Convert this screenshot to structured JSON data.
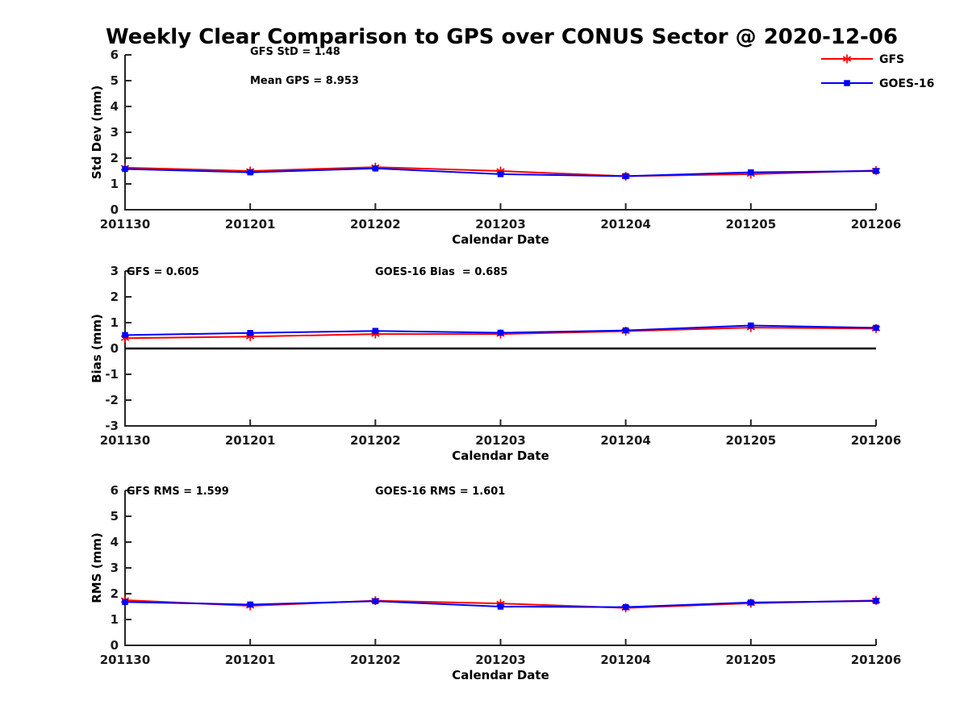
{
  "title": "Weekly Clear Comparison to GPS over CONUS Sector @ 2020-12-06",
  "legend": {
    "position": "top-right",
    "items": [
      {
        "label": "GFS",
        "color": "#ff0000",
        "marker": "asterisk"
      },
      {
        "label": "GOES-16",
        "color": "#0000ff",
        "marker": "square"
      }
    ]
  },
  "axis_color": "#262626",
  "zero_line_color": "#000000",
  "chart_data": [
    {
      "type": "line",
      "name": "std-dev-panel",
      "ylabel": "Std Dev (mm)",
      "xlabel": "Calendar Date",
      "ylim": [
        0,
        6
      ],
      "yticks": [
        0,
        1,
        2,
        3,
        4,
        5,
        6
      ],
      "grid": false,
      "zero_line": false,
      "categories": [
        "201130",
        "201201",
        "201202",
        "201203",
        "201204",
        "201205",
        "201206"
      ],
      "annotations": [
        {
          "text": "GFS StD = 1.48"
        },
        {
          "text": "Mean GPS = 8.953"
        }
      ],
      "series": [
        {
          "name": "GFS",
          "color": "#ff0000",
          "marker": "asterisk",
          "values": [
            1.63,
            1.5,
            1.65,
            1.5,
            1.3,
            1.38,
            1.52
          ]
        },
        {
          "name": "GOES-16",
          "color": "#0000ff",
          "marker": "square",
          "values": [
            1.58,
            1.45,
            1.6,
            1.38,
            1.3,
            1.45,
            1.5
          ]
        }
      ]
    },
    {
      "type": "line",
      "name": "bias-panel",
      "ylabel": "Bias (mm)",
      "xlabel": "Calendar Date",
      "ylim": [
        -3,
        3
      ],
      "yticks": [
        -3,
        -2,
        -1,
        0,
        1,
        2,
        3
      ],
      "grid": false,
      "zero_line": true,
      "categories": [
        "201130",
        "201201",
        "201202",
        "201203",
        "201204",
        "201205",
        "201206"
      ],
      "annotations": [
        {
          "text": "GFS = 0.605"
        },
        {
          "text": "GOES-16 Bias  = 0.685"
        }
      ],
      "series": [
        {
          "name": "GFS",
          "color": "#ff0000",
          "marker": "asterisk",
          "values": [
            0.4,
            0.46,
            0.56,
            0.56,
            0.67,
            0.81,
            0.77
          ]
        },
        {
          "name": "GOES-16",
          "color": "#0000ff",
          "marker": "square",
          "values": [
            0.52,
            0.6,
            0.68,
            0.61,
            0.7,
            0.89,
            0.8
          ]
        }
      ]
    },
    {
      "type": "line",
      "name": "rms-panel",
      "ylabel": "RMS (mm)",
      "xlabel": "Calendar Date",
      "ylim": [
        0,
        6
      ],
      "yticks": [
        0,
        1,
        2,
        3,
        4,
        5,
        6
      ],
      "grid": false,
      "zero_line": false,
      "categories": [
        "201130",
        "201201",
        "201202",
        "201203",
        "201204",
        "201205",
        "201206"
      ],
      "annotations": [
        {
          "text": "GFS RMS = 1.599"
        },
        {
          "text": "GOES-16 RMS = 1.601"
        }
      ],
      "series": [
        {
          "name": "GFS",
          "color": "#ff0000",
          "marker": "asterisk",
          "values": [
            1.75,
            1.53,
            1.73,
            1.62,
            1.45,
            1.63,
            1.74
          ]
        },
        {
          "name": "GOES-16",
          "color": "#0000ff",
          "marker": "square",
          "values": [
            1.68,
            1.58,
            1.71,
            1.5,
            1.48,
            1.66,
            1.72
          ]
        }
      ]
    }
  ]
}
